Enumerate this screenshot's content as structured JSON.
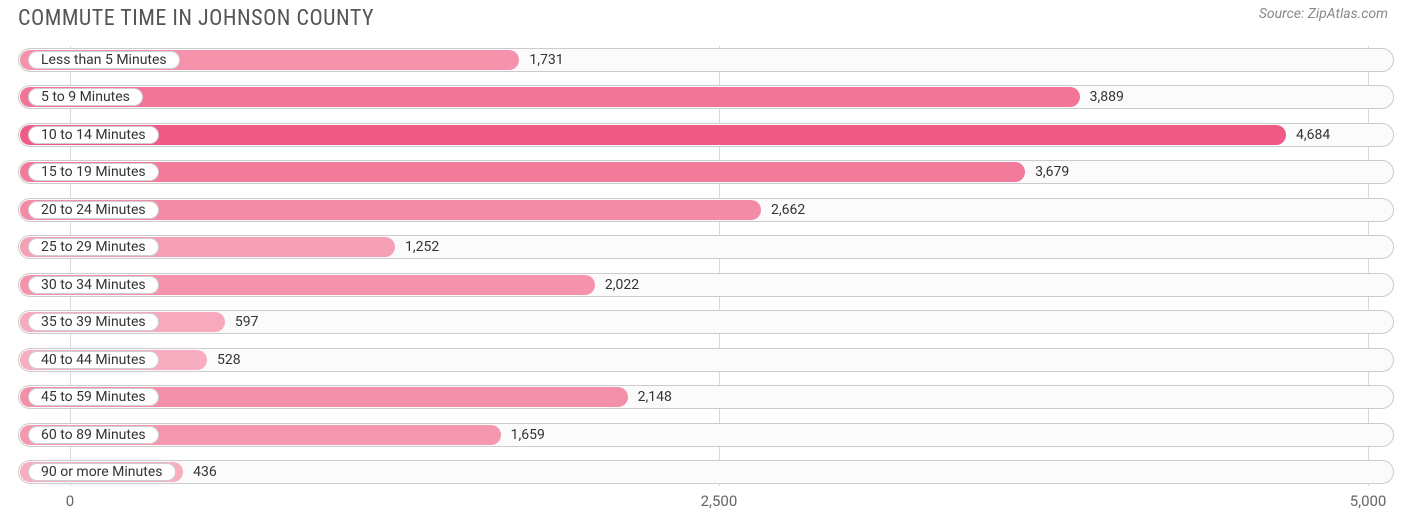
{
  "title": "COMMUTE TIME IN JOHNSON COUNTY",
  "source_label": "Source:",
  "source_value": "ZipAtlas.com",
  "chart": {
    "type": "bar-horizontal",
    "background_color": "#ffffff",
    "track_border_color": "#cccccc",
    "track_fill": "#fbfbfb",
    "grid_color": "#d9d9d9",
    "pill_bg": "#ffffff",
    "pill_border": "#cfcfcf",
    "text_color": "#333333",
    "title_color": "#555555",
    "title_fontsize": 22,
    "label_fontsize": 14,
    "bar_radius": 12,
    "xlim": [
      -200,
      5100
    ],
    "xticks": [
      {
        "value": 0,
        "label": "0"
      },
      {
        "value": 2500,
        "label": "2,500"
      },
      {
        "value": 5000,
        "label": "5,000"
      }
    ],
    "rows": [
      {
        "category": "Less than 5 Minutes",
        "value": 1731,
        "value_label": "1,731",
        "bar_color": "#f592ac"
      },
      {
        "category": "5 to 9 Minutes",
        "value": 3889,
        "value_label": "3,889",
        "bar_color": "#f27497"
      },
      {
        "category": "10 to 14 Minutes",
        "value": 4684,
        "value_label": "4,684",
        "bar_color": "#ef5b86"
      },
      {
        "category": "15 to 19 Minutes",
        "value": 3679,
        "value_label": "3,679",
        "bar_color": "#f27a9b"
      },
      {
        "category": "20 to 24 Minutes",
        "value": 2662,
        "value_label": "2,662",
        "bar_color": "#f48ba6"
      },
      {
        "category": "25 to 29 Minutes",
        "value": 1252,
        "value_label": "1,252",
        "bar_color": "#f6a0b6"
      },
      {
        "category": "30 to 34 Minutes",
        "value": 2022,
        "value_label": "2,022",
        "bar_color": "#f592ac"
      },
      {
        "category": "35 to 39 Minutes",
        "value": 597,
        "value_label": "597",
        "bar_color": "#f7aabd"
      },
      {
        "category": "40 to 44 Minutes",
        "value": 528,
        "value_label": "528",
        "bar_color": "#f7acbf"
      },
      {
        "category": "45 to 59 Minutes",
        "value": 2148,
        "value_label": "2,148",
        "bar_color": "#f48fa9"
      },
      {
        "category": "60 to 89 Minutes",
        "value": 1659,
        "value_label": "1,659",
        "bar_color": "#f597af"
      },
      {
        "category": "90 or more Minutes",
        "value": 436,
        "value_label": "436",
        "bar_color": "#f7aec1"
      }
    ]
  }
}
